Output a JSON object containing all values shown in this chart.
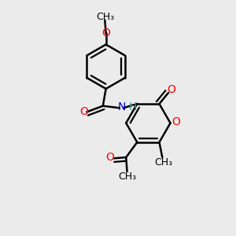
{
  "bg_color": "#ebebeb",
  "atom_colors": {
    "C": "#000000",
    "O": "#ff0000",
    "N": "#0000cc",
    "H": "#3a9090"
  },
  "bond_color": "#000000",
  "bond_width": 1.8,
  "font_size": 10,
  "fig_size": [
    3.0,
    3.0
  ],
  "dpi": 100,
  "xlim": [
    0.0,
    10.0
  ],
  "ylim": [
    0.0,
    11.5
  ]
}
